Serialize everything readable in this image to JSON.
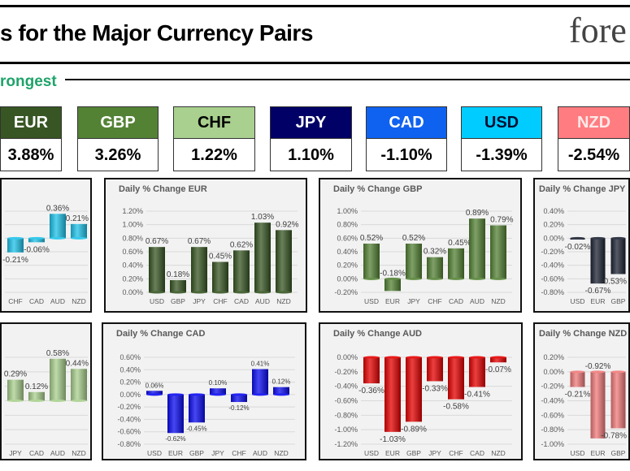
{
  "header": {
    "title": "s for the Major Currency Pairs",
    "logo": "fore",
    "section_label": "rongest"
  },
  "currencies": [
    {
      "code": "EUR",
      "value": "3.88%",
      "bg": "#375623",
      "fg": "#ffffff"
    },
    {
      "code": "GBP",
      "value": "3.26%",
      "bg": "#548235",
      "fg": "#ffffff"
    },
    {
      "code": "CHF",
      "value": "1.22%",
      "bg": "#a9d08e",
      "fg": "#000000"
    },
    {
      "code": "JPY",
      "value": "1.10%",
      "bg": "#000066",
      "fg": "#ffffff"
    },
    {
      "code": "CAD",
      "value": "-1.10%",
      "bg": "#0f62f0",
      "fg": "#ffffff"
    },
    {
      "code": "USD",
      "value": "-1.39%",
      "bg": "#00ccff",
      "fg": "#001133"
    },
    {
      "code": "NZD",
      "value": "-2.54%",
      "bg": "#ff7c80",
      "fg": "#ffe8e8"
    }
  ],
  "chart_data": [
    {
      "type": "bar",
      "title": "",
      "categories": [
        "CHF",
        "CAD",
        "AUD",
        "NZD"
      ],
      "values": [
        -0.21,
        -0.06,
        0.36,
        0.21
      ],
      "ylim": [
        -0.8,
        0.4
      ],
      "yticks": [],
      "color": "#1ec3ea"
    },
    {
      "type": "bar",
      "title": "Daily % Change EUR",
      "categories": [
        "USD",
        "GBP",
        "JPY",
        "CHF",
        "CAD",
        "AUD",
        "NZD"
      ],
      "values": [
        0.67,
        0.18,
        0.67,
        0.45,
        0.62,
        1.03,
        0.92
      ],
      "ylim": [
        0,
        1.2
      ],
      "yticks": [
        0,
        0.2,
        0.4,
        0.6,
        0.8,
        1.0,
        1.2
      ],
      "color": "#375623"
    },
    {
      "type": "bar",
      "title": "Daily % Change GBP",
      "categories": [
        "USD",
        "EUR",
        "JPY",
        "CHF",
        "CAD",
        "AUD",
        "NZD"
      ],
      "values": [
        0.52,
        -0.18,
        0.52,
        0.32,
        0.45,
        0.89,
        0.79
      ],
      "ylim": [
        -0.2,
        1.0
      ],
      "yticks": [
        -0.2,
        0,
        0.2,
        0.4,
        0.6,
        0.8,
        1.0
      ],
      "color": "#548235"
    },
    {
      "type": "bar",
      "title": "Daily % Change JPY",
      "categories": [
        "USD",
        "EUR",
        "GBP"
      ],
      "values": [
        -0.02,
        -0.67,
        -0.53
      ],
      "ylim": [
        -0.8,
        0.4
      ],
      "yticks": [
        -0.8,
        -0.6,
        -0.4,
        -0.2,
        0,
        0.2,
        0.4
      ],
      "color": "#1c2333"
    },
    {
      "type": "bar",
      "title": "",
      "categories": [
        "JPY",
        "CAD",
        "AUD",
        "NZD"
      ],
      "values": [
        0.29,
        0.12,
        0.58,
        0.44
      ],
      "ylim": [
        -0.6,
        0.6
      ],
      "yticks": [],
      "color": "#a9d08e"
    },
    {
      "type": "bar",
      "title": "Daily % Change CAD",
      "categories": [
        "USD",
        "EUR",
        "GBP",
        "JPY",
        "CHF",
        "AUD",
        "NZD"
      ],
      "values": [
        0.06,
        -0.62,
        -0.45,
        0.1,
        -0.12,
        0.41,
        0.12
      ],
      "ylim": [
        -0.8,
        0.6
      ],
      "yticks": [
        -0.8,
        -0.6,
        -0.4,
        -0.2,
        0,
        0.2,
        0.4,
        0.6
      ],
      "color": "#0a0af0"
    },
    {
      "type": "bar",
      "title": "Daily % Change AUD",
      "categories": [
        "USD",
        "EUR",
        "GBP",
        "JPY",
        "CHF",
        "CAD",
        "NZD"
      ],
      "values": [
        -0.36,
        -1.03,
        -0.89,
        -0.33,
        -0.58,
        -0.41,
        -0.07
      ],
      "ylim": [
        -1.2,
        0
      ],
      "yticks": [
        -1.2,
        -1.0,
        -0.8,
        -0.6,
        -0.4,
        -0.2,
        0
      ],
      "color": "#e50000"
    },
    {
      "type": "bar",
      "title": "Daily % Change NZD",
      "categories": [
        "USD",
        "EUR",
        "GBP"
      ],
      "values": [
        -0.21,
        -0.92,
        -0.78
      ],
      "ylim": [
        -1.0,
        0.2
      ],
      "yticks": [
        -1.0,
        -0.8,
        -0.6,
        -0.4,
        -0.2,
        0,
        0.2
      ],
      "color": "#f07a7a"
    }
  ]
}
